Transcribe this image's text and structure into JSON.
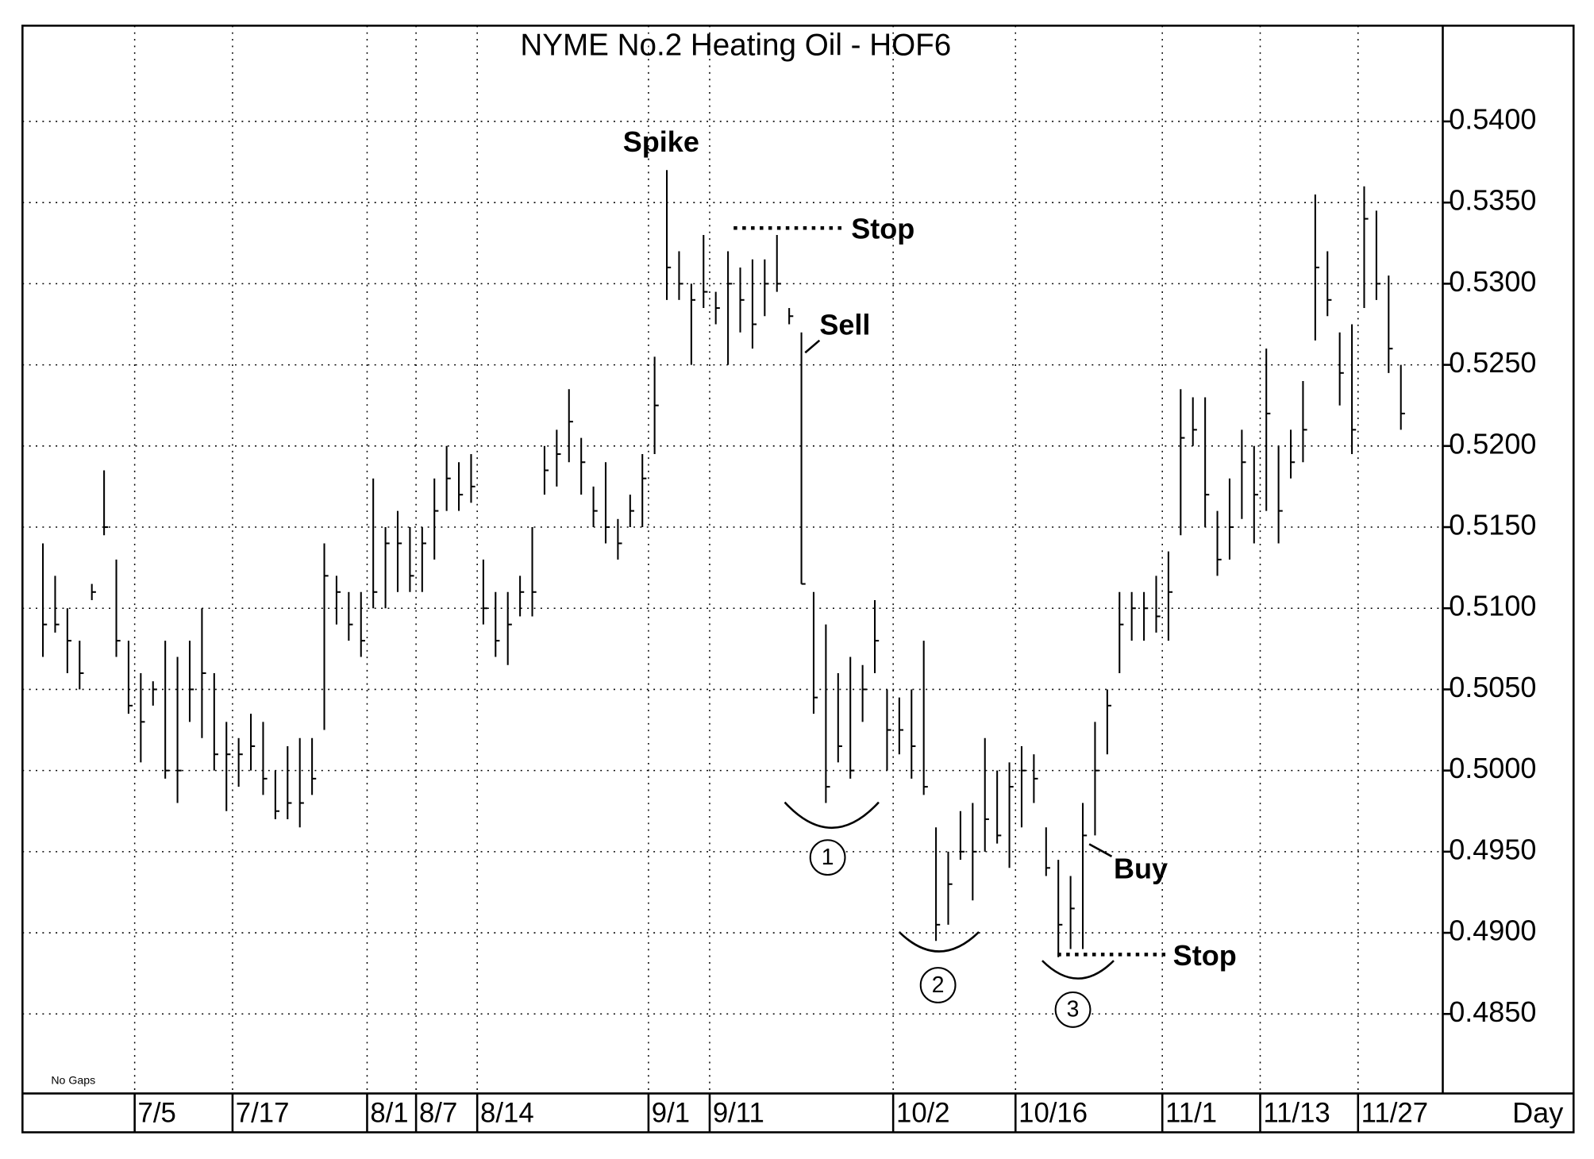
{
  "chart_data": {
    "type": "ohlc",
    "title": "NYME No.2 Heating Oil - HOF6",
    "x_label": "Day",
    "note": "No Gaps",
    "color": "#000000",
    "categories": [
      null,
      null,
      null,
      null,
      null,
      null,
      null,
      null,
      "7/5",
      null,
      null,
      null,
      null,
      null,
      null,
      null,
      "7/17",
      null,
      null,
      null,
      null,
      null,
      null,
      null,
      null,
      null,
      null,
      "8/1",
      null,
      null,
      null,
      "8/7",
      null,
      null,
      null,
      null,
      "8/14",
      null,
      null,
      null,
      null,
      null,
      null,
      null,
      null,
      null,
      null,
      null,
      null,
      null,
      "9/1",
      null,
      null,
      null,
      null,
      "9/11",
      null,
      null,
      null,
      null,
      null,
      null,
      null,
      null,
      null,
      null,
      null,
      null,
      null,
      null,
      "10/2",
      null,
      null,
      null,
      null,
      null,
      null,
      null,
      null,
      null,
      "10/16",
      null,
      null,
      null,
      null,
      null,
      null,
      null,
      null,
      null,
      null,
      null,
      "11/1",
      null,
      null,
      null,
      null,
      null,
      null,
      null,
      "11/13",
      null,
      null,
      null,
      null,
      null,
      null,
      null,
      "11/27",
      null,
      null,
      null
    ],
    "high": [
      0.514,
      0.512,
      0.51,
      0.508,
      0.5115,
      0.5185,
      0.513,
      0.508,
      0.506,
      0.5055,
      0.508,
      0.507,
      0.508,
      0.51,
      0.506,
      0.503,
      0.502,
      0.5035,
      0.503,
      0.5,
      0.5015,
      0.502,
      0.502,
      0.514,
      0.512,
      0.511,
      0.511,
      0.518,
      0.515,
      0.516,
      0.515,
      0.515,
      0.518,
      0.52,
      0.519,
      0.5195,
      0.513,
      0.511,
      0.511,
      0.512,
      0.515,
      0.52,
      0.521,
      0.5235,
      0.5205,
      0.5175,
      0.519,
      0.5155,
      0.517,
      0.5195,
      0.5255,
      0.537,
      0.532,
      0.53,
      0.533,
      0.5295,
      0.532,
      0.531,
      0.5315,
      0.5315,
      0.533,
      0.5285,
      0.527,
      0.511,
      0.509,
      0.506,
      0.507,
      0.5065,
      0.5105,
      0.505,
      0.5045,
      0.505,
      0.508,
      0.4965,
      0.495,
      0.4975,
      0.498,
      0.502,
      0.5,
      0.5005,
      0.5015,
      0.501,
      0.4965,
      0.4945,
      0.4935,
      0.498,
      0.503,
      0.505,
      0.511,
      0.511,
      0.511,
      0.512,
      0.5135,
      0.5235,
      0.523,
      0.523,
      0.516,
      0.518,
      0.521,
      0.52,
      0.526,
      0.52,
      0.521,
      0.524,
      0.5355,
      0.532,
      0.527,
      0.5275,
      0.536,
      0.5345,
      0.5305,
      0.525
    ],
    "low": [
      0.507,
      0.5085,
      0.506,
      0.505,
      0.5105,
      0.5145,
      0.507,
      0.5035,
      0.5005,
      0.504,
      0.4995,
      0.498,
      0.503,
      0.502,
      0.5,
      0.4975,
      0.499,
      0.5,
      0.4985,
      0.497,
      0.497,
      0.4965,
      0.4985,
      0.5025,
      0.509,
      0.508,
      0.507,
      0.51,
      0.51,
      0.511,
      0.511,
      0.511,
      0.513,
      0.516,
      0.516,
      0.5165,
      0.509,
      0.507,
      0.5065,
      0.5095,
      0.5095,
      0.517,
      0.5175,
      0.519,
      0.517,
      0.515,
      0.514,
      0.513,
      0.515,
      0.515,
      0.5195,
      0.529,
      0.529,
      0.525,
      0.5285,
      0.5275,
      0.525,
      0.527,
      0.526,
      0.528,
      0.5295,
      0.5275,
      0.5115,
      0.5035,
      0.498,
      0.5005,
      0.4995,
      0.503,
      0.506,
      0.5,
      0.501,
      0.4995,
      0.4985,
      0.4895,
      0.4905,
      0.4945,
      0.492,
      0.495,
      0.4955,
      0.494,
      0.4965,
      0.498,
      0.4935,
      0.4885,
      0.489,
      0.489,
      0.496,
      0.501,
      0.506,
      0.508,
      0.508,
      0.5085,
      0.508,
      0.5145,
      0.52,
      0.515,
      0.512,
      0.513,
      0.5155,
      0.514,
      0.516,
      0.514,
      0.518,
      0.519,
      0.5265,
      0.528,
      0.5225,
      0.5195,
      0.5285,
      0.529,
      0.5245,
      0.521
    ],
    "close": [
      0.509,
      0.509,
      0.508,
      0.506,
      0.511,
      0.515,
      0.508,
      0.504,
      0.503,
      0.505,
      0.5,
      0.5,
      0.505,
      0.506,
      0.501,
      0.501,
      0.501,
      0.5015,
      0.4995,
      0.4975,
      0.498,
      0.498,
      0.4995,
      0.512,
      0.511,
      0.509,
      0.508,
      0.511,
      0.514,
      0.514,
      0.512,
      0.514,
      0.516,
      0.518,
      0.517,
      0.5175,
      0.51,
      0.508,
      0.509,
      0.511,
      0.511,
      0.5185,
      0.5195,
      0.5215,
      0.519,
      0.516,
      0.515,
      0.514,
      0.516,
      0.518,
      0.5225,
      0.531,
      0.53,
      0.529,
      0.5295,
      0.5285,
      0.53,
      0.529,
      0.5275,
      0.53,
      0.53,
      0.528,
      0.5115,
      0.5045,
      0.499,
      0.5015,
      0.5,
      0.505,
      0.508,
      0.5025,
      0.5025,
      0.5015,
      0.499,
      0.4905,
      0.493,
      0.495,
      0.495,
      0.497,
      0.496,
      0.499,
      0.5,
      0.4995,
      0.494,
      0.4905,
      0.4915,
      0.496,
      0.5,
      0.504,
      0.509,
      0.51,
      0.51,
      0.5095,
      0.511,
      0.5205,
      0.521,
      0.517,
      0.513,
      0.515,
      0.519,
      0.517,
      0.522,
      0.516,
      0.519,
      0.521,
      0.531,
      0.529,
      0.5245,
      0.521,
      0.534,
      0.53,
      0.526,
      0.522
    ],
    "ylim": [
      0.4801,
      0.5459
    ],
    "yticks": [
      {
        "value": 0.485,
        "label": "0.4850"
      },
      {
        "value": 0.49,
        "label": "0.4900"
      },
      {
        "value": 0.495,
        "label": "0.4950"
      },
      {
        "value": 0.5,
        "label": "0.5000"
      },
      {
        "value": 0.505,
        "label": "0.5050"
      },
      {
        "value": 0.51,
        "label": "0.5100"
      },
      {
        "value": 0.515,
        "label": "0.5150"
      },
      {
        "value": 0.52,
        "label": "0.5200"
      },
      {
        "value": 0.525,
        "label": "0.5250"
      },
      {
        "value": 0.53,
        "label": "0.5300"
      },
      {
        "value": 0.535,
        "label": "0.5350"
      },
      {
        "value": 0.54,
        "label": "0.5400"
      }
    ],
    "grid": true,
    "annotations": [
      "Spike",
      "Stop",
      "Sell",
      "1",
      "2",
      "3",
      "Stop",
      "Buy"
    ]
  }
}
